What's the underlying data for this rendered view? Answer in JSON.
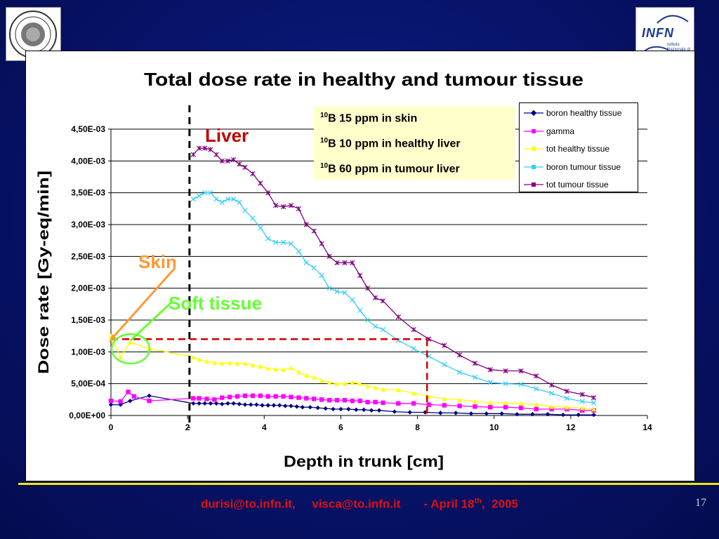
{
  "slide": {
    "footer_emails": "durisi@to.infn.it,     visca@to.infn.it",
    "footer_date_prefix": "       - April 18",
    "footer_date_sup": "th",
    "footer_date_suffix": ",  2005",
    "page_number": "17",
    "logo_right_text": "INFN",
    "logo_right_sub": "Istituto Nazionale di Fisica Nucleare",
    "colors": {
      "background": "#071369",
      "footer_line": "#f2e600",
      "footer_text": "#e01010"
    }
  },
  "annotations": {
    "liver": "Liver",
    "skin": "Skin",
    "soft_tissue": "Soft tissue",
    "notes": [
      {
        "sup": "10",
        "text": "B 15 ppm in skin"
      },
      {
        "sup": "10",
        "text": "B 10 ppm in healthy liver"
      },
      {
        "sup": "10",
        "text": "B 60 ppm in tumour liver"
      }
    ],
    "colors": {
      "liver": "#c00000",
      "skin": "#ff9933",
      "soft_tissue": "#66ff33"
    }
  },
  "chart_data": {
    "type": "line",
    "title": "Total dose rate in healthy and tumour tissue",
    "xlabel": "Depth in trunk [cm]",
    "ylabel": "Dose rate [Gy-eq/min]",
    "xlim": [
      0,
      14
    ],
    "ylim": [
      0,
      0.0045
    ],
    "xticks": [
      0,
      2,
      4,
      6,
      8,
      10,
      12,
      14
    ],
    "yticks": [
      0,
      0.0005,
      0.001,
      0.0015,
      0.002,
      0.0025,
      0.003,
      0.0035,
      0.004,
      0.0045
    ],
    "yticklabels": [
      "0,00E+00",
      "5,00E-04",
      "1,00E-03",
      "1,50E-03",
      "2,00E-03",
      "2,50E-03",
      "3,00E-03",
      "3,50E-03",
      "4,00E-03",
      "4,50E-03"
    ],
    "grid": "horizontal",
    "legend_position": "top-right",
    "vertical_marker_x": 2.05,
    "reference_line": {
      "y": 0.0012,
      "x_end": 8.25
    },
    "series": [
      {
        "name": "boron healthy tissue",
        "color": "#000080",
        "marker": "diamond",
        "x": [
          0,
          0.25,
          0.5,
          1.0,
          2.15,
          2.3,
          2.45,
          2.6,
          2.75,
          2.9,
          3.05,
          3.2,
          3.35,
          3.5,
          3.65,
          3.8,
          3.95,
          4.1,
          4.25,
          4.4,
          4.55,
          4.7,
          4.85,
          5.0,
          5.2,
          5.4,
          5.6,
          5.8,
          6.0,
          6.2,
          6.4,
          6.6,
          6.8,
          7.0,
          7.4,
          7.8,
          8.2,
          8.6,
          9.0,
          9.4,
          9.8,
          10.2,
          10.6,
          11.0,
          11.4,
          11.8,
          12.2,
          12.6
        ],
        "y": [
          0.00017,
          0.00017,
          0.00023,
          0.00031,
          0.00019,
          0.00019,
          0.00019,
          0.00019,
          0.00019,
          0.00018,
          0.00019,
          0.00019,
          0.00018,
          0.00017,
          0.00017,
          0.00017,
          0.00016,
          0.00016,
          0.00016,
          0.00016,
          0.00015,
          0.00015,
          0.00014,
          0.00013,
          0.00013,
          0.00012,
          0.00011,
          0.0001,
          0.0001,
          0.0001,
          9e-05,
          9e-05,
          8e-05,
          8e-05,
          6e-05,
          5e-05,
          5e-05,
          4e-05,
          4e-05,
          3e-05,
          3e-05,
          3e-05,
          2e-05,
          2e-05,
          2e-05,
          1e-05,
          1e-05,
          1e-05
        ]
      },
      {
        "name": "gamma",
        "color": "#ff00ff",
        "marker": "square",
        "x": [
          0,
          0.25,
          0.45,
          0.6,
          1.0,
          2.15,
          2.3,
          2.5,
          2.7,
          2.9,
          3.1,
          3.3,
          3.5,
          3.7,
          3.9,
          4.1,
          4.3,
          4.5,
          4.7,
          4.9,
          5.1,
          5.3,
          5.5,
          5.7,
          5.9,
          6.1,
          6.3,
          6.5,
          6.7,
          6.9,
          7.1,
          7.5,
          7.9,
          8.3,
          8.7,
          9.1,
          9.5,
          9.9,
          10.3,
          10.7,
          11.1,
          11.5,
          11.9,
          12.3,
          12.6
        ],
        "y": [
          0.00023,
          0.00022,
          0.00037,
          0.0003,
          0.00023,
          0.00027,
          0.00027,
          0.00026,
          0.00025,
          0.00028,
          0.00029,
          0.0003,
          0.00031,
          0.00031,
          0.00031,
          0.0003,
          0.0003,
          0.0003,
          0.00029,
          0.00028,
          0.00027,
          0.00026,
          0.00025,
          0.00024,
          0.00024,
          0.00024,
          0.00023,
          0.00023,
          0.00021,
          0.00021,
          0.0002,
          0.00019,
          0.00019,
          0.00017,
          0.00016,
          0.00015,
          0.00014,
          0.00013,
          0.00013,
          0.00012,
          0.0001,
          0.0001,
          0.0001,
          8e-05,
          8e-05
        ]
      },
      {
        "name": "tot healthy tissue",
        "color": "#ffff00",
        "marker": "triangle",
        "x": [
          0,
          0.25,
          0.5,
          1.0,
          2.15,
          2.3,
          2.5,
          2.7,
          2.9,
          3.1,
          3.3,
          3.5,
          3.7,
          3.9,
          4.1,
          4.3,
          4.5,
          4.7,
          4.9,
          5.1,
          5.3,
          5.5,
          5.7,
          5.9,
          6.1,
          6.3,
          6.5,
          6.7,
          6.9,
          7.1,
          7.5,
          7.9,
          8.3,
          8.7,
          9.1,
          9.5,
          9.9,
          10.3,
          10.7,
          11.1,
          11.5,
          11.9,
          12.3,
          12.6
        ],
        "y": [
          0.00125,
          0.00092,
          0.00115,
          0.00105,
          0.00092,
          0.00088,
          0.00085,
          0.00083,
          0.00082,
          0.00083,
          0.00082,
          0.00082,
          0.00079,
          0.00077,
          0.00074,
          0.00073,
          0.00072,
          0.00075,
          0.00068,
          0.00063,
          0.0006,
          0.00055,
          0.00052,
          0.0005,
          0.0005,
          0.00052,
          0.0005,
          0.00046,
          0.00044,
          0.00041,
          0.0004,
          0.00035,
          0.0003,
          0.00026,
          0.00025,
          0.00022,
          0.0002,
          0.0002,
          0.00019,
          0.00017,
          0.00014,
          0.00013,
          0.00012,
          0.0001
        ]
      },
      {
        "name": "boron tumour tissue",
        "color": "#33ccff",
        "marker": "x",
        "x": [
          2.15,
          2.3,
          2.45,
          2.6,
          2.75,
          2.9,
          3.05,
          3.2,
          3.35,
          3.5,
          3.7,
          3.9,
          4.1,
          4.3,
          4.5,
          4.7,
          4.9,
          5.1,
          5.3,
          5.5,
          5.7,
          5.9,
          6.1,
          6.3,
          6.5,
          6.7,
          6.9,
          7.1,
          7.5,
          7.9,
          8.3,
          8.7,
          9.1,
          9.5,
          9.9,
          10.3,
          10.7,
          11.1,
          11.5,
          11.9,
          12.3,
          12.6
        ],
        "y": [
          0.0034,
          0.00345,
          0.0035,
          0.0035,
          0.0034,
          0.00335,
          0.0034,
          0.0034,
          0.00335,
          0.00322,
          0.0031,
          0.00295,
          0.00278,
          0.00272,
          0.00272,
          0.0027,
          0.00258,
          0.0024,
          0.00232,
          0.0022,
          0.002,
          0.00195,
          0.00193,
          0.00182,
          0.00165,
          0.0015,
          0.0014,
          0.00135,
          0.00118,
          0.00105,
          0.00093,
          0.0008,
          0.00068,
          0.0006,
          0.00052,
          0.0005,
          0.00049,
          0.00042,
          0.00035,
          0.00027,
          0.00022,
          0.0002
        ]
      },
      {
        "name": "tot tumour tissue",
        "color": "#800080",
        "marker": "star",
        "x": [
          2.15,
          2.3,
          2.45,
          2.6,
          2.75,
          2.9,
          3.05,
          3.2,
          3.35,
          3.5,
          3.7,
          3.9,
          4.1,
          4.3,
          4.5,
          4.7,
          4.9,
          5.1,
          5.3,
          5.5,
          5.7,
          5.9,
          6.1,
          6.3,
          6.5,
          6.7,
          6.9,
          7.1,
          7.5,
          7.9,
          8.3,
          8.7,
          9.1,
          9.5,
          9.9,
          10.3,
          10.7,
          11.1,
          11.5,
          11.9,
          12.3,
          12.6
        ],
        "y": [
          0.0041,
          0.0042,
          0.0042,
          0.00418,
          0.0041,
          0.004,
          0.004,
          0.00402,
          0.00395,
          0.0039,
          0.0038,
          0.00365,
          0.0035,
          0.0033,
          0.00328,
          0.0033,
          0.00325,
          0.003,
          0.0029,
          0.0027,
          0.0025,
          0.0024,
          0.0024,
          0.0024,
          0.0022,
          0.002,
          0.00185,
          0.0018,
          0.00155,
          0.00135,
          0.0012,
          0.0011,
          0.00095,
          0.00082,
          0.00072,
          0.0007,
          0.0007,
          0.00062,
          0.00048,
          0.00038,
          0.00033,
          0.00028
        ]
      }
    ]
  }
}
